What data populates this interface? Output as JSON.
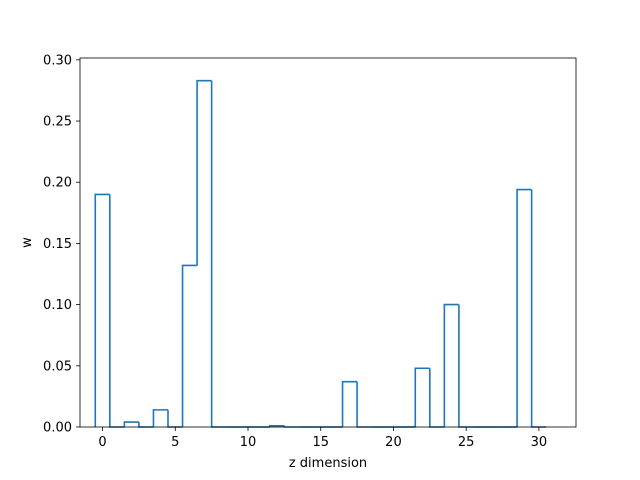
{
  "chart_data": {
    "type": "bar",
    "style": "step-outline",
    "x": [
      0,
      1,
      2,
      3,
      4,
      5,
      6,
      7,
      8,
      9,
      10,
      11,
      12,
      13,
      14,
      15,
      16,
      17,
      18,
      19,
      20,
      21,
      22,
      23,
      24,
      25,
      26,
      27,
      28,
      29,
      30
    ],
    "values": [
      0.19,
      0.0,
      0.004,
      0.0,
      0.014,
      0.0,
      0.132,
      0.283,
      0.0,
      0.0,
      0.0,
      0.0,
      0.001,
      0.0,
      0.0,
      0.0,
      0.0,
      0.037,
      0.0,
      0.0,
      0.0,
      0.0,
      0.048,
      0.0,
      0.1,
      0.0,
      0.0,
      0.0,
      0.0,
      0.194,
      0.0
    ],
    "xlabel": "z dimension",
    "ylabel": "w",
    "xlim": [
      -1.55,
      32.55
    ],
    "ylim": [
      0.0,
      0.3015
    ],
    "xticks": [
      0,
      5,
      10,
      15,
      20,
      25,
      30
    ],
    "yticks": [
      0.0,
      0.05,
      0.1,
      0.15,
      0.2,
      0.25,
      0.3
    ],
    "ytick_labels": [
      "0.00",
      "0.05",
      "0.10",
      "0.15",
      "0.20",
      "0.25",
      "0.30"
    ],
    "grid": false,
    "line_color": "#1f77b4"
  }
}
